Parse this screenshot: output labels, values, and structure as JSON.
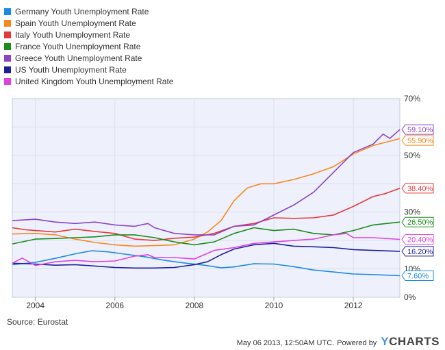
{
  "footer": {
    "source": "Source: Eurostat",
    "timestamp": "May 06 2013, 12:50AM UTC.",
    "powered_by": "Powered by",
    "brand_y": "Y",
    "brand_rest": "CHARTS"
  },
  "chart_data": {
    "type": "line",
    "title": "",
    "xlabel": "",
    "ylabel": "",
    "x_range": [
      2003.42,
      2013.17
    ],
    "ylim": [
      0,
      70
    ],
    "x_ticks": [
      {
        "value": 2004,
        "label": "2004"
      },
      {
        "value": 2006,
        "label": "2006"
      },
      {
        "value": 2008,
        "label": "2008"
      },
      {
        "value": 2010,
        "label": "2010"
      },
      {
        "value": 2012,
        "label": "2012"
      }
    ],
    "y_ticks": [
      {
        "value": 0,
        "label": "0%"
      },
      {
        "value": 10,
        "label": "10%"
      },
      {
        "value": 30,
        "label": "30%"
      },
      {
        "value": 50,
        "label": "50%"
      },
      {
        "value": 70,
        "label": "70%"
      }
    ],
    "grid": true,
    "legend_position": "top-left",
    "series": [
      {
        "name": "Germany Youth Unemployment Rate",
        "color": "#1a8be6",
        "last_label": "7.60%",
        "points": [
          [
            2003.42,
            11.5
          ],
          [
            2004.0,
            12.3
          ],
          [
            2004.5,
            13.7
          ],
          [
            2005.0,
            15.3
          ],
          [
            2005.42,
            16.4
          ],
          [
            2005.83,
            16.0
          ],
          [
            2006.25,
            15.2
          ],
          [
            2006.75,
            14.3
          ],
          [
            2007.25,
            13.0
          ],
          [
            2007.75,
            12.1
          ],
          [
            2008.25,
            11.3
          ],
          [
            2008.67,
            10.4
          ],
          [
            2009.0,
            10.7
          ],
          [
            2009.5,
            11.8
          ],
          [
            2010.0,
            11.7
          ],
          [
            2010.5,
            10.8
          ],
          [
            2011.0,
            9.6
          ],
          [
            2011.5,
            8.9
          ],
          [
            2012.0,
            8.2
          ],
          [
            2012.5,
            8.0
          ],
          [
            2013.17,
            7.6
          ]
        ]
      },
      {
        "name": "Spain Youth Unemployment Rate",
        "color": "#f7881e",
        "last_label": "55.90%",
        "points": [
          [
            2003.42,
            22.3
          ],
          [
            2004.0,
            22.5
          ],
          [
            2004.5,
            22.0
          ],
          [
            2005.0,
            20.5
          ],
          [
            2005.5,
            19.3
          ],
          [
            2006.0,
            18.5
          ],
          [
            2006.5,
            18.0
          ],
          [
            2007.0,
            18.2
          ],
          [
            2007.5,
            18.5
          ],
          [
            2008.0,
            20.5
          ],
          [
            2008.33,
            23.0
          ],
          [
            2008.67,
            27.0
          ],
          [
            2009.0,
            34.0
          ],
          [
            2009.33,
            38.5
          ],
          [
            2009.67,
            40.0
          ],
          [
            2010.0,
            40.0
          ],
          [
            2010.5,
            41.5
          ],
          [
            2011.0,
            43.5
          ],
          [
            2011.5,
            46.0
          ],
          [
            2012.0,
            50.5
          ],
          [
            2012.5,
            53.5
          ],
          [
            2013.17,
            55.9
          ]
        ]
      },
      {
        "name": "Italy Youth Unemployment Rate",
        "color": "#e53939",
        "last_label": "38.40%",
        "points": [
          [
            2003.42,
            24.5
          ],
          [
            2003.75,
            23.8
          ],
          [
            2004.0,
            23.5
          ],
          [
            2004.5,
            23.0
          ],
          [
            2005.0,
            24.0
          ],
          [
            2005.5,
            23.2
          ],
          [
            2006.0,
            22.5
          ],
          [
            2006.5,
            20.5
          ],
          [
            2007.0,
            20.0
          ],
          [
            2007.5,
            20.8
          ],
          [
            2008.0,
            21.2
          ],
          [
            2008.5,
            22.5
          ],
          [
            2009.0,
            25.0
          ],
          [
            2009.5,
            26.0
          ],
          [
            2010.0,
            28.0
          ],
          [
            2010.5,
            27.8
          ],
          [
            2011.0,
            28.0
          ],
          [
            2011.5,
            29.0
          ],
          [
            2012.0,
            32.0
          ],
          [
            2012.5,
            35.5
          ],
          [
            2012.8,
            36.5
          ],
          [
            2013.17,
            38.4
          ]
        ]
      },
      {
        "name": "France Youth Unemployment Rate",
        "color": "#1a8c1a",
        "last_label": "26.50%",
        "points": [
          [
            2003.42,
            18.8
          ],
          [
            2004.0,
            20.5
          ],
          [
            2004.5,
            20.7
          ],
          [
            2005.0,
            21.0
          ],
          [
            2005.5,
            21.3
          ],
          [
            2006.0,
            22.0
          ],
          [
            2006.5,
            22.0
          ],
          [
            2007.0,
            21.0
          ],
          [
            2007.5,
            19.5
          ],
          [
            2008.0,
            18.5
          ],
          [
            2008.5,
            19.5
          ],
          [
            2009.0,
            22.5
          ],
          [
            2009.5,
            24.5
          ],
          [
            2010.0,
            23.5
          ],
          [
            2010.5,
            24.0
          ],
          [
            2011.0,
            22.5
          ],
          [
            2011.5,
            22.0
          ],
          [
            2012.0,
            23.5
          ],
          [
            2012.5,
            25.5
          ],
          [
            2013.17,
            26.5
          ]
        ]
      },
      {
        "name": "Greece Youth Unemployment Rate",
        "color": "#8a45c4",
        "last_label": "59.10%",
        "points": [
          [
            2003.42,
            27.0
          ],
          [
            2004.0,
            27.5
          ],
          [
            2004.5,
            26.5
          ],
          [
            2005.0,
            26.0
          ],
          [
            2005.5,
            26.5
          ],
          [
            2006.0,
            25.5
          ],
          [
            2006.5,
            25.0
          ],
          [
            2006.83,
            26.0
          ],
          [
            2007.0,
            24.5
          ],
          [
            2007.5,
            22.5
          ],
          [
            2008.0,
            22.0
          ],
          [
            2008.5,
            22.0
          ],
          [
            2009.0,
            25.0
          ],
          [
            2009.5,
            25.5
          ],
          [
            2010.0,
            29.0
          ],
          [
            2010.5,
            32.5
          ],
          [
            2011.0,
            37.0
          ],
          [
            2011.5,
            44.0
          ],
          [
            2012.0,
            51.0
          ],
          [
            2012.5,
            54.0
          ],
          [
            2012.75,
            57.5
          ],
          [
            2012.92,
            56.0
          ],
          [
            2013.17,
            59.1
          ]
        ]
      },
      {
        "name": "US Youth Unemployment Rate",
        "color": "#1c1f99",
        "last_label": "16.20%",
        "points": [
          [
            2003.42,
            12.0
          ],
          [
            2004.0,
            11.7
          ],
          [
            2004.5,
            11.3
          ],
          [
            2005.0,
            11.5
          ],
          [
            2005.5,
            11.0
          ],
          [
            2006.0,
            10.5
          ],
          [
            2006.5,
            10.3
          ],
          [
            2007.0,
            10.3
          ],
          [
            2007.5,
            10.5
          ],
          [
            2008.0,
            11.5
          ],
          [
            2008.33,
            12.5
          ],
          [
            2008.67,
            15.0
          ],
          [
            2009.0,
            17.0
          ],
          [
            2009.5,
            18.5
          ],
          [
            2010.0,
            19.0
          ],
          [
            2010.5,
            18.0
          ],
          [
            2011.0,
            17.8
          ],
          [
            2011.5,
            17.5
          ],
          [
            2012.0,
            16.8
          ],
          [
            2012.5,
            16.5
          ],
          [
            2013.17,
            16.2
          ]
        ]
      },
      {
        "name": "United Kingdom Youth Unemployment Rate",
        "color": "#e040e0",
        "last_label": "20.40%",
        "points": [
          [
            2003.42,
            12.0
          ],
          [
            2003.67,
            13.8
          ],
          [
            2004.0,
            11.2
          ],
          [
            2004.5,
            12.5
          ],
          [
            2005.0,
            13.0
          ],
          [
            2005.5,
            12.5
          ],
          [
            2006.0,
            12.8
          ],
          [
            2006.5,
            14.5
          ],
          [
            2006.83,
            15.0
          ],
          [
            2007.0,
            14.0
          ],
          [
            2007.5,
            14.0
          ],
          [
            2008.0,
            13.5
          ],
          [
            2008.5,
            16.5
          ],
          [
            2009.0,
            17.5
          ],
          [
            2009.5,
            19.0
          ],
          [
            2010.0,
            19.5
          ],
          [
            2010.5,
            20.0
          ],
          [
            2011.0,
            20.5
          ],
          [
            2011.5,
            22.0
          ],
          [
            2011.83,
            22.5
          ],
          [
            2012.0,
            21.0
          ],
          [
            2012.5,
            21.0
          ],
          [
            2013.17,
            20.4
          ]
        ]
      }
    ]
  }
}
